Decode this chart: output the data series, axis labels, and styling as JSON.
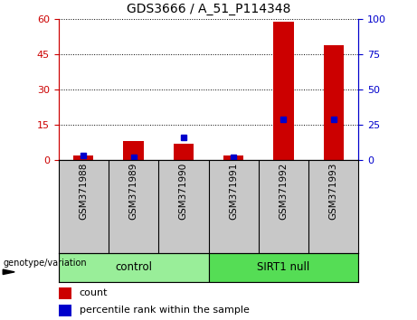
{
  "title": "GDS3666 / A_51_P114348",
  "categories": [
    "GSM371988",
    "GSM371989",
    "GSM371990",
    "GSM371991",
    "GSM371992",
    "GSM371993"
  ],
  "count_values": [
    2,
    8,
    7,
    2,
    59,
    49
  ],
  "percentile_values": [
    3,
    2,
    16,
    2,
    29,
    29
  ],
  "ylim_left": [
    0,
    60
  ],
  "ylim_right": [
    0,
    100
  ],
  "yticks_left": [
    0,
    15,
    30,
    45,
    60
  ],
  "yticks_right": [
    0,
    25,
    50,
    75,
    100
  ],
  "groups": [
    {
      "label": "control",
      "indices": [
        0,
        1,
        2
      ],
      "color": "#99ee99"
    },
    {
      "label": "SIRT1 null",
      "indices": [
        3,
        4,
        5
      ],
      "color": "#55dd55"
    }
  ],
  "bar_color": "#cc0000",
  "dot_color": "#0000cc",
  "grid_color": "#000000",
  "axis_left_color": "#cc0000",
  "axis_right_color": "#0000cc",
  "bg_color": "#ffffff",
  "plot_bg_color": "#ffffff",
  "tick_label_area_color": "#c8c8c8",
  "legend_count_label": "count",
  "legend_pct_label": "percentile rank within the sample",
  "genotype_label": "genotype/variation",
  "bar_width": 0.4
}
